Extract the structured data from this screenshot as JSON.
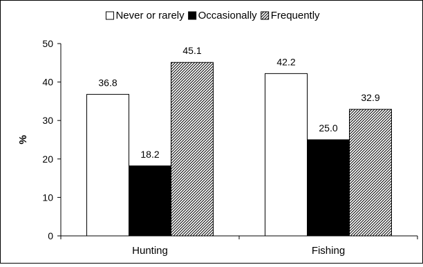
{
  "chart_data": {
    "type": "bar",
    "title": "",
    "xlabel": "",
    "ylabel": "%",
    "ylim": [
      0,
      50
    ],
    "yticks": [
      0,
      10,
      20,
      30,
      40,
      50
    ],
    "grid": false,
    "legend_position": "top",
    "categories": [
      "Hunting",
      "Fishing"
    ],
    "series": [
      {
        "name": "Never or rarely",
        "values": [
          36.8,
          42.2
        ],
        "labels": [
          "36.8",
          "42.2"
        ],
        "fill": "white"
      },
      {
        "name": "Occasionally",
        "values": [
          18.2,
          25.0
        ],
        "labels": [
          "18.2",
          "25.0"
        ],
        "fill": "black"
      },
      {
        "name": "Frequently",
        "values": [
          45.1,
          32.9
        ],
        "labels": [
          "45.1",
          "32.9"
        ],
        "fill": "diagonal-hatch"
      }
    ],
    "colors": {
      "outline": "#000000",
      "solid": "#000000",
      "empty": "#ffffff"
    }
  }
}
